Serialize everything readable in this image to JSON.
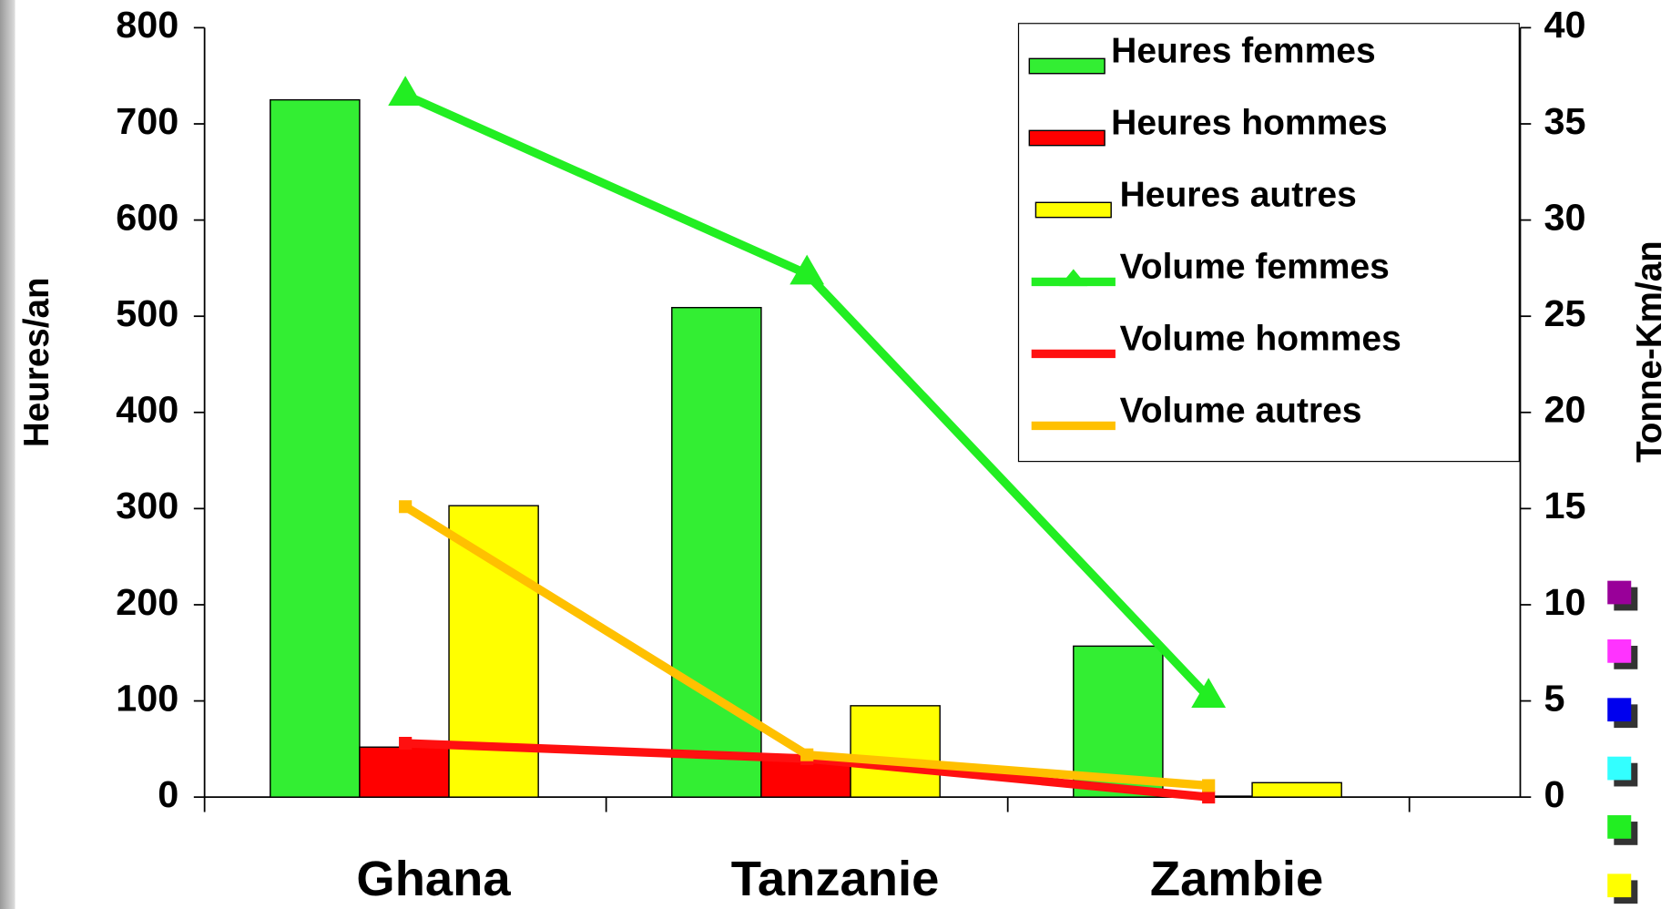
{
  "chart_data": {
    "type": "bar",
    "categories": [
      "Ghana",
      "Tanzanie",
      "Zambie"
    ],
    "y_label": "Heures/an",
    "y2_label": "Tonne-Km/an",
    "ylim": [
      0,
      800
    ],
    "yticks": [
      0,
      100,
      200,
      300,
      400,
      500,
      600,
      700,
      800
    ],
    "y2lim": [
      0,
      40
    ],
    "y2ticks": [
      0,
      5,
      10,
      15,
      20,
      25,
      30,
      35,
      40
    ],
    "series": [
      {
        "name": "Heures femmes",
        "type": "bar",
        "color": "#33ee33",
        "values": [
          725,
          509,
          157
        ]
      },
      {
        "name": "Heures hommes",
        "type": "bar",
        "color": "#ff0000",
        "values": [
          52,
          44,
          1
        ]
      },
      {
        "name": "Heures autres",
        "type": "bar",
        "color": "#ffff00",
        "values": [
          303,
          95,
          15
        ]
      },
      {
        "name": "Volume femmes",
        "type": "line",
        "axis": "y2",
        "marker": "triangle",
        "color": "#22ee22",
        "values": [
          36.5,
          27.2,
          5.2
        ]
      },
      {
        "name": "Volume hommes",
        "type": "line",
        "axis": "y2",
        "marker": "square",
        "color": "#ff1010",
        "values": [
          2.8,
          2.0,
          0
        ]
      },
      {
        "name": "Volume autres",
        "type": "line",
        "axis": "y2",
        "marker": "square",
        "color": "#ffc000",
        "values": [
          15.1,
          2.2,
          0.6
        ]
      }
    ]
  }
}
